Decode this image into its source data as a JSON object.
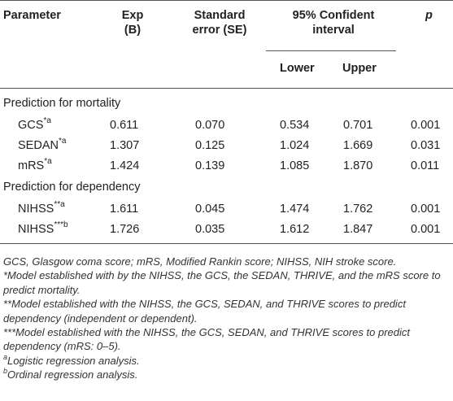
{
  "table": {
    "headers": {
      "parameter": "Parameter",
      "exp_line1": "Exp",
      "exp_line2": "(B)",
      "se_line1": "Standard",
      "se_line2": "error (SE)",
      "ci_line1": "95% Confident",
      "ci_line2": "interval",
      "ci_lower": "Lower",
      "ci_upper": "Upper",
      "p": "p"
    },
    "sections": [
      {
        "title": "Prediction for mortality",
        "rows": [
          {
            "name": "GCS",
            "sup": "*a",
            "exp": "0.611",
            "se": "0.070",
            "lower": "0.534",
            "upper": "0.701",
            "p": "0.001"
          },
          {
            "name": "SEDAN",
            "sup": "*a",
            "exp": "1.307",
            "se": "0.125",
            "lower": "1.024",
            "upper": "1.669",
            "p": "0.031"
          },
          {
            "name": "mRS",
            "sup": "*a",
            "exp": "1.424",
            "se": "0.139",
            "lower": "1.085",
            "upper": "1.870",
            "p": "0.011"
          }
        ]
      },
      {
        "title": "Prediction for dependency",
        "rows": [
          {
            "name": "NIHSS",
            "sup": "**a",
            "exp": "1.611",
            "se": "0.045",
            "lower": "1.474",
            "upper": "1.762",
            "p": "0.001"
          },
          {
            "name": "NIHSS",
            "sup": "***b",
            "exp": "1.726",
            "se": "0.035",
            "lower": "1.612",
            "upper": "1.847",
            "p": "0.001"
          }
        ]
      }
    ]
  },
  "footnotes": {
    "abbrev": "GCS, Glasgow coma score; mRS, Modified Rankin score; NIHSS, NIH stroke score.",
    "note1": "*Model established with by the NIHSS, the GCS, the SEDAN, THRIVE, and the mRS score to predict mortality.",
    "note2": "**Model established with the NIHSS, the GCS, SEDAN, and THRIVE scores to predict dependency (independent or dependent).",
    "note3": "***Model established with the NIHSS, the GCS, SEDAN, and THRIVE scores to predict dependency (mRS: 0–5).",
    "note_a_mark": "a",
    "note_a": "Logistic regression analysis.",
    "note_b_mark": "b",
    "note_b": "Ordinal regression analysis."
  }
}
